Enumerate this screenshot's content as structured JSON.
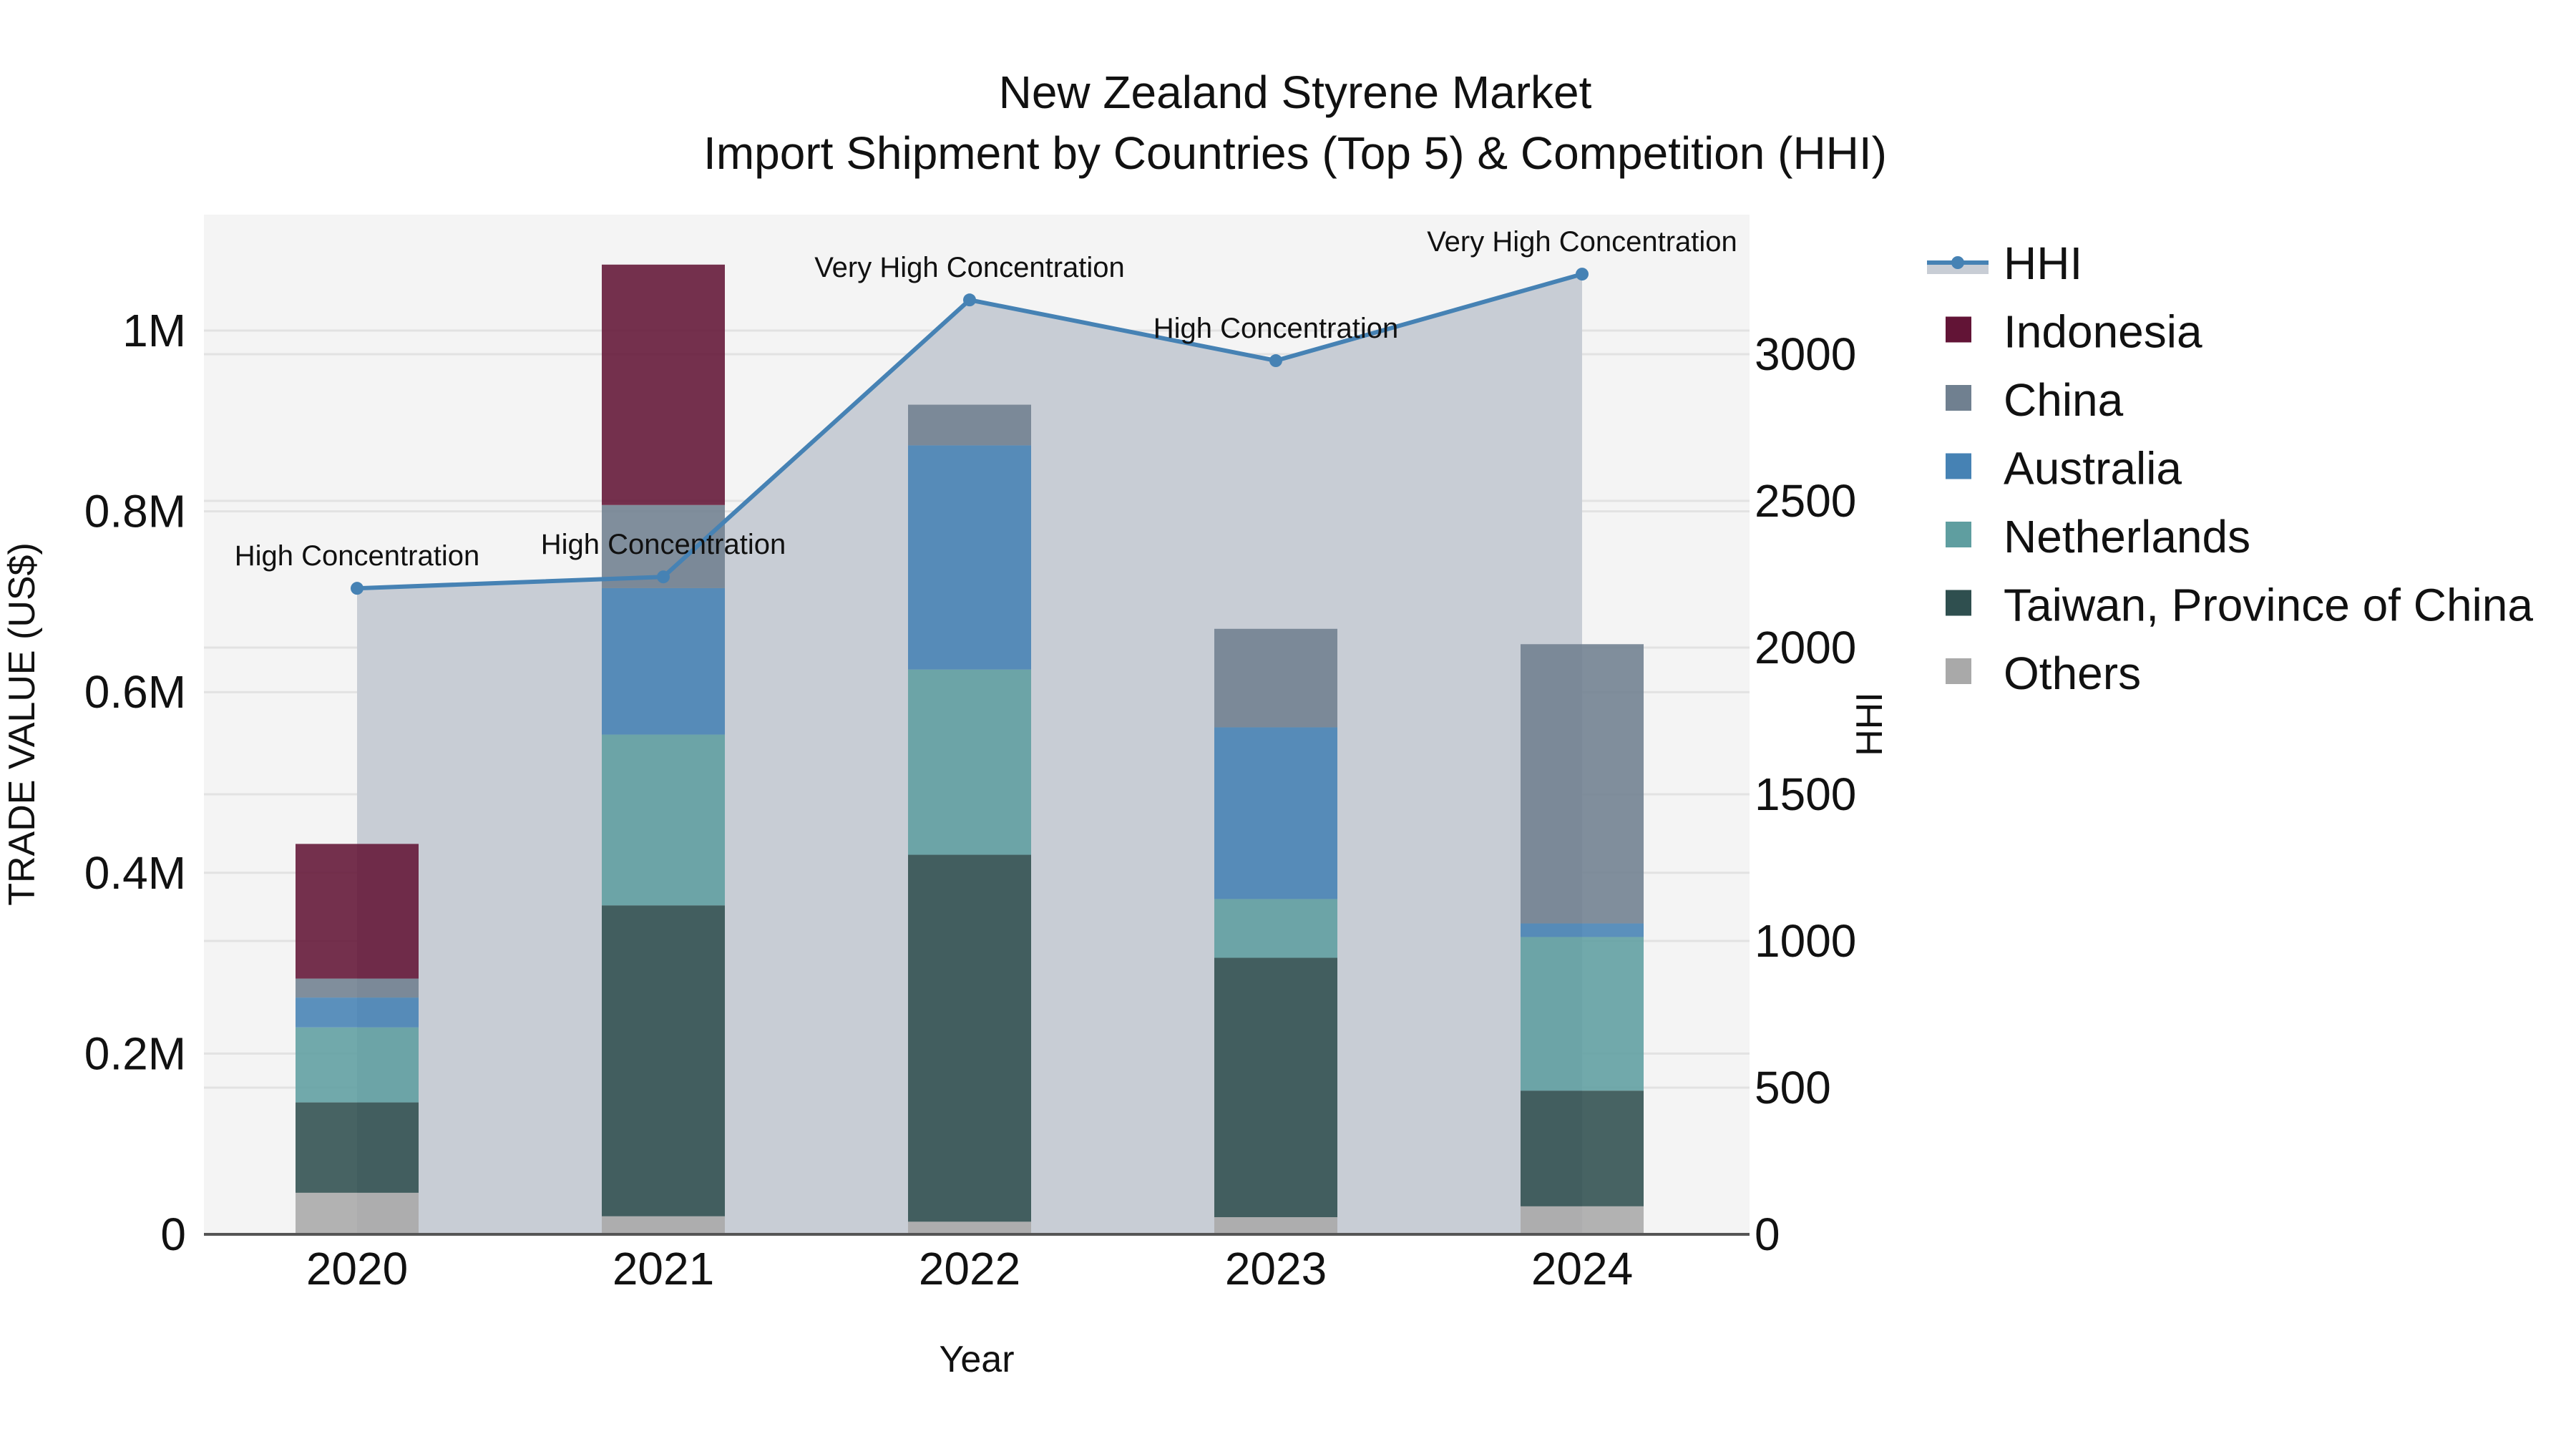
{
  "title": {
    "line1": "New Zealand Styrene Market",
    "line2": "Import Shipment by Countries (Top 5) & Competition (HHI)"
  },
  "axes": {
    "x_title": "Year",
    "y_left_title": "TRADE VALUE (US$)",
    "y_right_title": "HHI",
    "y_left_ticks": [
      "0",
      "0.2M",
      "0.4M",
      "0.6M",
      "0.8M",
      "1M"
    ],
    "y_right_ticks": [
      "0",
      "500",
      "1000",
      "1500",
      "2000",
      "2500",
      "3000"
    ]
  },
  "legend": {
    "items": [
      {
        "label": "HHI",
        "type": "line",
        "color": "#4682b4"
      },
      {
        "label": "Indonesia",
        "type": "bar",
        "color": "#621436"
      },
      {
        "label": "China",
        "type": "bar",
        "color": "#708090"
      },
      {
        "label": "Australia",
        "type": "bar",
        "color": "#4682b4"
      },
      {
        "label": "Netherlands",
        "type": "bar",
        "color": "#5f9ea0"
      },
      {
        "label": "Taiwan, Province of China",
        "type": "bar",
        "color": "#2f4f4f"
      },
      {
        "label": "Others",
        "type": "bar",
        "color": "#a9a9a9"
      }
    ]
  },
  "colors": {
    "plot_bg": "#f4f4f4",
    "grid": "#e2e2e2",
    "hhi_line": "#4682b4",
    "hhi_fill": "#c8cdd5",
    "axis_line": "#555555"
  },
  "chart_data": {
    "type": "bar",
    "stacked": true,
    "title": "New Zealand Styrene Market — Import Shipment by Countries (Top 5) & Competition (HHI)",
    "xlabel": "Year",
    "ylabel": "TRADE VALUE (US$)",
    "y2label": "HHI",
    "categories": [
      "2020",
      "2021",
      "2022",
      "2023",
      "2024"
    ],
    "ylim": [
      0,
      1130000
    ],
    "y2lim": [
      0,
      3470
    ],
    "grid": true,
    "legend_position": "right",
    "series": [
      {
        "name": "Others",
        "color": "#a9a9a9",
        "values": [
          46000,
          20000,
          14000,
          19000,
          31000
        ]
      },
      {
        "name": "Taiwan, Province of China",
        "color": "#2f4f4f",
        "values": [
          100000,
          344000,
          406000,
          287000,
          128000
        ]
      },
      {
        "name": "Netherlands",
        "color": "#5f9ea0",
        "values": [
          83000,
          189000,
          205000,
          65000,
          170000
        ]
      },
      {
        "name": "Australia",
        "color": "#4682b4",
        "values": [
          33000,
          162000,
          248000,
          190000,
          15000
        ]
      },
      {
        "name": "China",
        "color": "#708090",
        "values": [
          21000,
          92000,
          45000,
          109000,
          309000
        ]
      },
      {
        "name": "Indonesia",
        "color": "#621436",
        "values": [
          149000,
          266000,
          0,
          0,
          0
        ]
      }
    ],
    "hhi": {
      "name": "HHI",
      "type": "line+area",
      "axis": "right",
      "values": [
        2202,
        2241,
        3185,
        2978,
        3273
      ],
      "annotations": [
        "High Concentration",
        "High Concentration",
        "Very High Concentration",
        "High Concentration",
        "Very High Concentration"
      ]
    }
  }
}
